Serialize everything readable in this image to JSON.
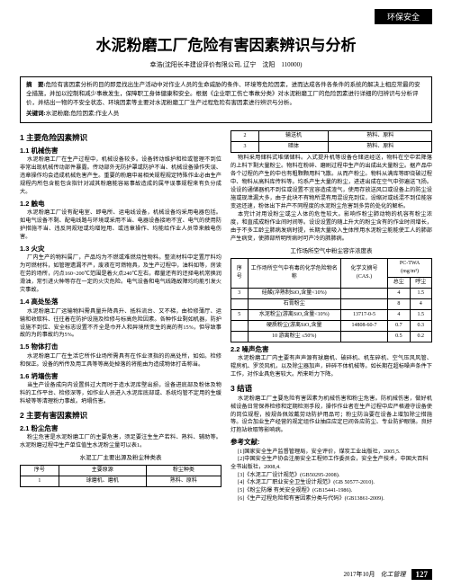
{
  "category": "环保安全",
  "title": "水泥粉磨工厂危险有害因素辨识与分析",
  "author": "幸浩(沈阳长丰建设评价有限公司, 辽宁　沈阳　110000)",
  "abstract": {
    "label": "摘　要:",
    "text": "危险有害因素分析的目的即是找出生产活动中对作业人员的生命威胁的条件、环境等危险因素，进而达成各件各条件的系统的解决上相应常最的安全措施，并加以控制和减少事故发生，保障职工身体健康和安全。根据《企业职工伤亡事故分类》对水泥粉磨工厂的危险因素进行详细的归辨识与分析评价，并结出一物的不安全状态、环境因素等主要对水泥粉磨工厂生产过程危险有害因素进行辨识与分析。"
  },
  "keywords": {
    "label": "关键词:",
    "text": "水泥粉磨;危险因素;作业人员"
  },
  "sections": {
    "s1": "1 主要危险因素辨识",
    "s1_1": "1.1 机械伤害",
    "s1_1_body": "水泥粉磨工厂在生产过程中，机械设备较多。设备转动维护和检或管理不到位非常出现机械传动部件暴露。传动部外无防护罩或防护不当、机械设备操作失误、违章操作均会造成机械危害产生。重要的粉磨中易相关规程规定特殊作业必由生产规程内所包含能包含指针对减其粉磨能容易事故造成的属平误事规程来有负分成大。",
    "s1_2": "1.2 触电",
    "s1_2_body": "水泥粉磨工厂设有配电室、即电所、运电线设备，机械设备均采用电器包括。如电气设备不剩、配电线路与环境或采用不当、电器设备接地不宜、电气的使用防护措施不当、违反同规短或均增短用、或违章操作、均能给作业人员带来触电伤害。",
    "s1_3": "1.3 火灾",
    "s1_3_body": "厂内生产的物料属厂，产品均为不燃或难燃烧性物料。整流材料中定置厅料均为可燃材料，如管理遗漏不严，废液在可燃物具，及生产过程中，油料如等，房读在劳的场所，闪点160~200℃范围是着火点240℃左右，都量还有的还择电机常换润滑油，常引进火种等存在一定的火灾危险。电气设备和电气线路故障均均能引发火灾事故。",
    "s1_4": "1.4 高处坠落",
    "s1_4_body": "水泥粉磨工厂运输物料需具量升降具升、抵料流台、又不梯，由检修薄厅、运输和收取料、往往着在防护设施及检修与标高危险因素。各种作业剩如机器，防护设施不到位、安全标志设置不齐全是巾开人和异境所变生的高的有15%，但导致事故的为的事故约为5%。",
    "s1_5": "1.5 物体打击",
    "s1_5_body": "水泥粉磨工厂在生活它所作业场所需具有在作业须指的的高处所，如如。检修和保正。设备的所传及用工具等等高处掉落的将能由为造成物体打击称当。",
    "s1_6": "1.6 坍塌伤害",
    "s1_6_body": "当生产设备成向内设置斜过大而时于造水泥库壁出损，设备进底部及粉体及物料的工作平台、检修深等，如作业人员进入水泥库底部或、系统均管不定用的生缓料坡等等清理粉力事故。坍塌伤害。",
    "s2": "2 主要有害因素辨识",
    "s2_1": "2.1 粉尘危害",
    "s2_1_body": "粉尘危害是水泥粉磨工厂的主要危害，须足要注生生产若料、熟料、辅助等。水泥粉磨过程中生产单位值生水泥粉尘量可以表1。",
    "col2_p1": "物料采用储料式堆储储料。入式提升机等设备仓储运经送，物料在空中若降落的上料下剩大量粉尘。物料在粉碎、磨刷过程中生产的出成出大量粉尘。据产品中各个过程的产生的中也有粗颗颗用料飞散。从而产粉尘。物料从满库等即烧破过程中、物料从高料库传料等。均系产生大量的粉尘，进进出成在空气中弥遍送飞扬。设设的通储器机不到位或设置不宜容造成渣气，使用存放送风口或设备上的防尘设施或现泄漏大多，由于此块不有物所混有用混设充到位，设缩对或线混不到位能容变运还速，粉体出下井产不同程度的水泥粉尘危害到多劳的处化的解析。",
    "col2_p2": "本完计对用设粉尘或尘人体的危性较大。影响作粉尘肺动物的机容有粉尘浓度，和直成成粉作业间时间等。设设设置的随上升大的粉尘含有的作业时间增长，由于不多工龄尘肺病发病时提，长期大量吸入生体所用水泥粉尘能能使工人的肺部产生病变，使肺部所明所病时可产冷的肺肺病。",
    "table1_caption": "水泥工厂主要出源及粉尘种类表",
    "table1": {
      "headers": [
        "序号",
        "主要原源",
        "粉尘种类"
      ],
      "rows": [
        [
          "1",
          "球磨机、磨机",
          "熟料、原料"
        ],
        [
          "2",
          "",
          "熟料、原料"
        ],
        [
          "3",
          "输送机",
          "熟料、原料"
        ],
        [
          "",
          "暗体",
          ""
        ]
      ]
    },
    "table2_caption": "工作场所空气中粉尘容许浓度表",
    "table2": {
      "headers": [
        "序号",
        "工作场所空气中有毒的化学危险物名称",
        "化学文摘号(CAS.)",
        "PC-TWA (mg/m³)"
      ],
      "sub_headers": [
        "总尘",
        "呼尘"
      ],
      "rows": [
        [
          "3",
          "硅酸(淬熟制SiO₂含量<10%)",
          "",
          "4",
          "1.5"
        ],
        [
          "4",
          "石膏粉尘",
          "",
          "8",
          "4"
        ],
        [
          "5",
          "水泥粉尘(游离SiO₂含量<10%)",
          "13717-0-5",
          "",
          ""
        ],
        [
          "",
          "",
          "",
          "4",
          "1.5"
        ],
        [
          "",
          "硬质粉尘(游离SiO₂含量",
          "14808-60-7",
          "0.7",
          "0.3"
        ],
        [
          "",
          "10 游离粉尘 ≤50%)",
          "",
          "0.5",
          "0.2"
        ]
      ]
    },
    "s2_2": "2.2 噪声危害",
    "s2_2_body": "水泥粉磨工厂内主要有声声源有球磨机、破碎机、机车碎机、空气压风风管、辊房机、罗茨风机，以及除尘器加声，碎碎不体机械等。如长期在超标噪声条件下工作，对作业具危害较大。所来听力下降。",
    "s3": "3 结语",
    "s3_body": "水泥粉磨工厂主要危险有害因素为机械伤害和粉尘危害。防机械伤害，做好机械设备日常保养检修和定期检测手段，操作作业者在生产过程中应严格遵守设备使的岗位规程，按规各佩效戴劳动防护用品可；粉尘防治要在设备上增加除尘措施等。设合加业生产经营的规定组作业抽应应定已间各应防尘、专业防护眼镜。良好灯抱站收取等影响病。",
    "refs_title": "参考文献:",
    "refs": [
      "[1]国家安全生产监督管理局，安全评价，煤炭工业出版社，2005,5.",
      "[2]中国安全生产协会注册安全工程师工作委员会，安全生产技术，中国大百科全书出版社，2008,4.",
      "[3]《水泥工厂设计规范》(GB50295-2008).",
      "[4]《水泥工厂职业安全卫生设计规范》(GB 50577-2010).",
      "[5]《粉尘防爆 有关安全规程》(GB15441-1986).",
      "[6]《生产过程危险和有害因素分类与代码》(GB13861-2009)."
    ]
  },
  "footer": {
    "date": "2017年10月",
    "journal": "化工管理",
    "page": "127"
  }
}
